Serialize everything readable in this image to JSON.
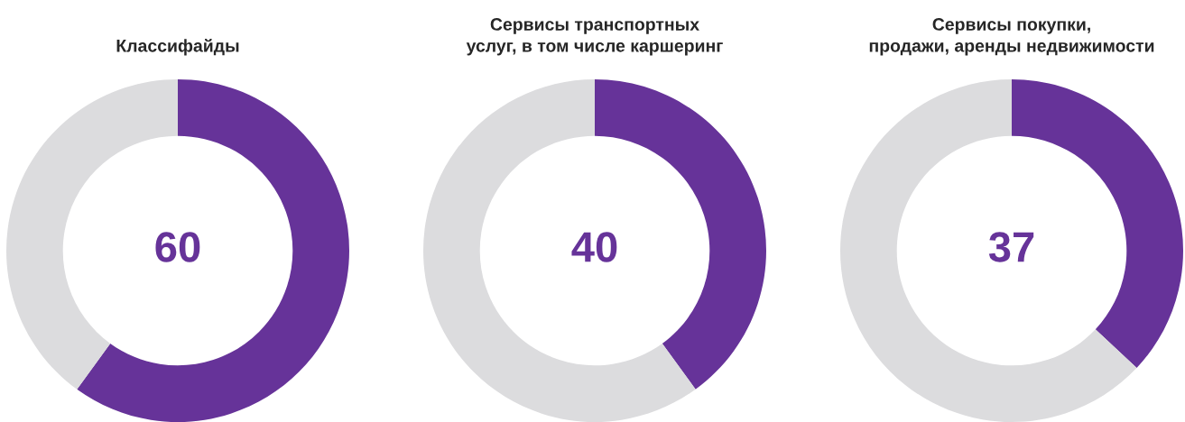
{
  "chart_data": [
    {
      "type": "donut",
      "title": "Классифайды",
      "categories": [
        null,
        null
      ],
      "values": [
        60,
        40
      ],
      "colors": [
        "#663399",
        "#dcdcde"
      ],
      "value_labels": [
        "60",
        null
      ]
    },
    {
      "type": "donut",
      "title": "Сервисы транспортных\nуслуг, в том числе каршеринг",
      "categories": [
        null,
        null
      ],
      "values": [
        40,
        60
      ],
      "colors": [
        "#663399",
        "#dcdcde"
      ],
      "value_labels": [
        "40",
        null
      ]
    },
    {
      "type": "donut",
      "title": "Сервисы покупки,\nпродажи, аренды недвижимости",
      "categories": [
        null,
        null
      ],
      "values": [
        37,
        63
      ],
      "colors": [
        "#663399",
        "#dcdcde"
      ],
      "value_labels": [
        "37",
        null
      ]
    }
  ]
}
